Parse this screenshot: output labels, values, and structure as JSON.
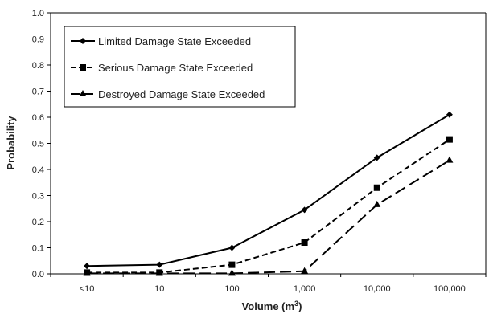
{
  "chart_data": {
    "type": "line",
    "categories": [
      "<10",
      "10",
      "100",
      "1,000",
      "10,000",
      "100,000"
    ],
    "xlabel": "Volume (m",
    "xlabel_sup": "3",
    "xlabel_close": ")",
    "ylabel": "Probability",
    "ylim": [
      0,
      1.0
    ],
    "yticks": [
      "0.0",
      "0.1",
      "0.2",
      "0.3",
      "0.4",
      "0.5",
      "0.6",
      "0.7",
      "0.8",
      "0.9",
      "1.0"
    ],
    "grid": false,
    "legend_position": "top-left",
    "series": [
      {
        "name": "Limited Damage State Exceeded",
        "values": [
          0.03,
          0.035,
          0.1,
          0.245,
          0.445,
          0.61
        ],
        "marker": "diamond",
        "dash": "solid",
        "color": "#000000"
      },
      {
        "name": "Serious Damage State Exceeded",
        "values": [
          0.005,
          0.005,
          0.035,
          0.12,
          0.33,
          0.515
        ],
        "marker": "square",
        "dash": "dashed",
        "color": "#000000"
      },
      {
        "name": "Destroyed Damage State Exceeded",
        "values": [
          0.002,
          0.002,
          0.002,
          0.01,
          0.265,
          0.435
        ],
        "marker": "triangle",
        "dash": "long-dash",
        "color": "#000000"
      }
    ]
  }
}
